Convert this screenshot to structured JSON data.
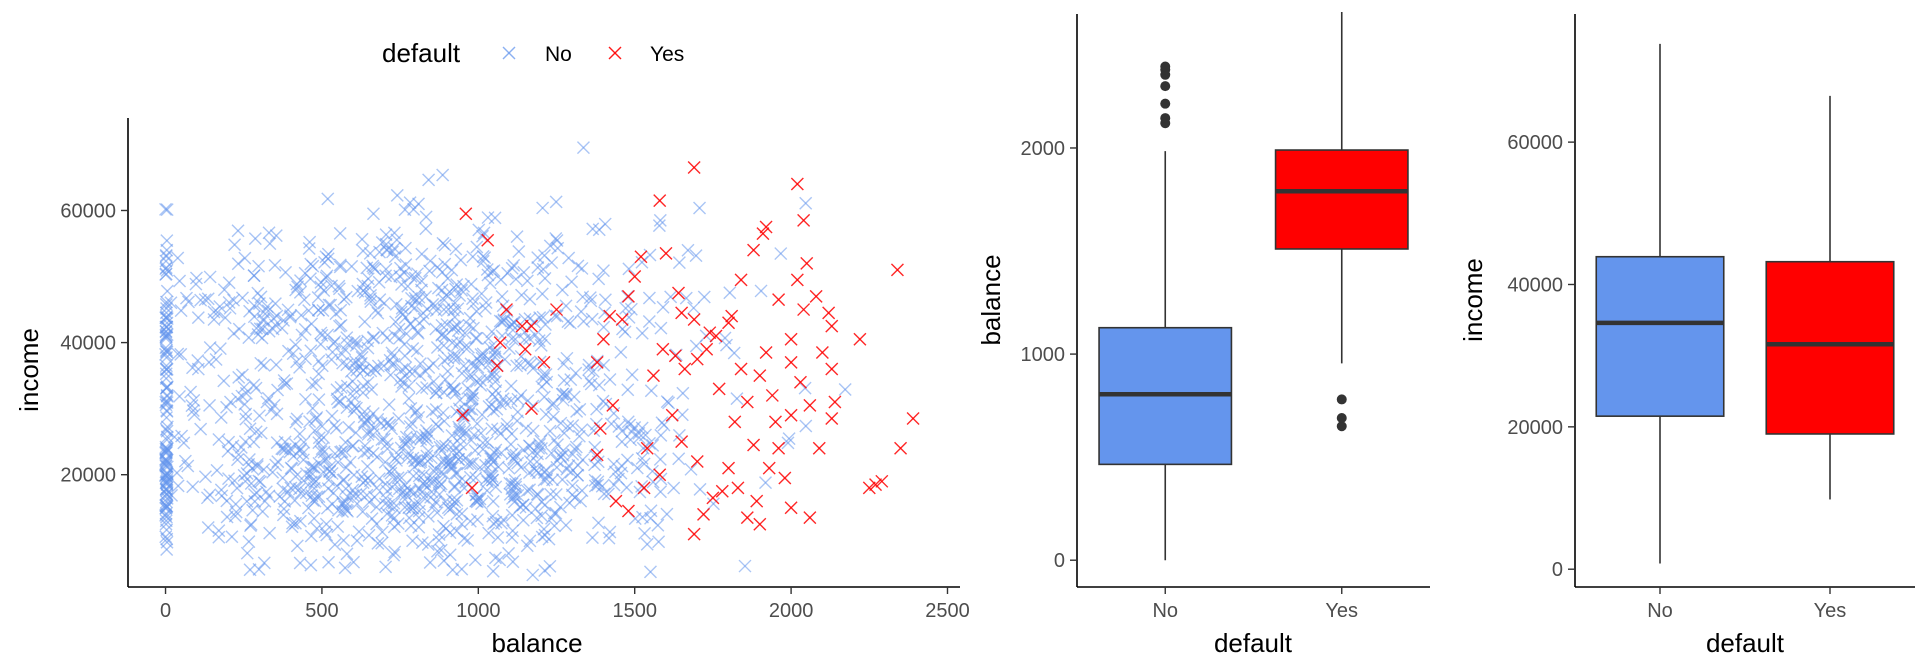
{
  "chart_data": [
    {
      "type": "scatter",
      "xlabel": "balance",
      "ylabel": "income",
      "xlim": [
        -120,
        2540
      ],
      "ylim": [
        3000,
        74000
      ],
      "x_ticks": [
        0,
        500,
        1000,
        1500,
        2000,
        2500
      ],
      "x_tick_labels": [
        "0",
        "500",
        "1000",
        "1500",
        "2000",
        "2500"
      ],
      "y_ticks": [
        20000,
        40000,
        60000
      ],
      "y_tick_labels": [
        "20000",
        "40000",
        "60000"
      ],
      "grid": false,
      "marker": "x",
      "legend": {
        "title": "default",
        "placement": "top",
        "entries": [
          {
            "label": "No",
            "color": "#6495ED"
          },
          {
            "label": "Yes",
            "color": "#FF0000"
          }
        ]
      },
      "series": [
        {
          "name": "No",
          "color": "#6495ED",
          "n_points": 1450
        },
        {
          "name": "Yes",
          "color": "#FF0000",
          "points": [
            [
              1690,
              66500
            ],
            [
              2020,
              64000
            ],
            [
              2040,
              58500
            ],
            [
              2120,
              44500
            ],
            [
              2130,
              42500
            ],
            [
              2220,
              40500
            ],
            [
              2340,
              51000
            ],
            [
              2390,
              28500
            ],
            [
              2350,
              24000
            ],
            [
              2290,
              19000
            ],
            [
              2250,
              18000
            ],
            [
              2270,
              18500
            ],
            [
              2130,
              28500
            ],
            [
              2060,
              30500
            ],
            [
              2030,
              34000
            ],
            [
              2000,
              37000
            ],
            [
              2000,
              40500
            ],
            [
              2040,
              45000
            ],
            [
              2050,
              52000
            ],
            [
              1920,
              57500
            ],
            [
              1910,
              56500
            ],
            [
              1880,
              54000
            ],
            [
              1840,
              49500
            ],
            [
              1810,
              44000
            ],
            [
              1800,
              43000
            ],
            [
              1760,
              41000
            ],
            [
              1730,
              39000
            ],
            [
              1700,
              37500
            ],
            [
              1690,
              43500
            ],
            [
              1650,
              44500
            ],
            [
              1640,
              47500
            ],
            [
              1600,
              53500
            ],
            [
              1580,
              61500
            ],
            [
              1520,
              53000
            ],
            [
              1500,
              50000
            ],
            [
              1480,
              47000
            ],
            [
              1460,
              43500
            ],
            [
              1420,
              44000
            ],
            [
              1400,
              40500
            ],
            [
              1380,
              37000
            ],
            [
              1430,
              30500
            ],
            [
              1390,
              27000
            ],
            [
              1380,
              23000
            ],
            [
              1560,
              35000
            ],
            [
              1590,
              39000
            ],
            [
              1630,
              38000
            ],
            [
              1620,
              29000
            ],
            [
              1650,
              25000
            ],
            [
              1580,
              20000
            ],
            [
              1540,
              24000
            ],
            [
              1700,
              22000
            ],
            [
              1720,
              14000
            ],
            [
              1690,
              11000
            ],
            [
              1750,
              16500
            ],
            [
              1780,
              17500
            ],
            [
              1800,
              21000
            ],
            [
              1860,
              13500
            ],
            [
              1900,
              12500
            ],
            [
              1930,
              21000
            ],
            [
              1960,
              24000
            ],
            [
              1940,
              32000
            ],
            [
              1900,
              35000
            ],
            [
              1860,
              31000
            ],
            [
              1820,
              28000
            ],
            [
              1840,
              36000
            ],
            [
              1920,
              38500
            ],
            [
              1960,
              46500
            ],
            [
              2020,
              49500
            ],
            [
              2080,
              47000
            ],
            [
              2100,
              38500
            ],
            [
              2130,
              36000
            ],
            [
              2140,
              31000
            ],
            [
              2090,
              24000
            ],
            [
              2060,
              13500
            ],
            [
              2000,
              15000
            ],
            [
              1980,
              19500
            ],
            [
              2000,
              29000
            ],
            [
              1170,
              30000
            ],
            [
              1210,
              37000
            ],
            [
              1250,
              45000
            ],
            [
              1170,
              42500
            ],
            [
              1150,
              39000
            ],
            [
              1140,
              42500
            ],
            [
              1090,
              45000
            ],
            [
              1070,
              40000
            ],
            [
              1030,
              55500
            ],
            [
              960,
              59500
            ],
            [
              980,
              18000
            ],
            [
              950,
              29000
            ],
            [
              1060,
              36500
            ],
            [
              1440,
              16000
            ],
            [
              1480,
              14500
            ],
            [
              1530,
              18000
            ],
            [
              1660,
              36000
            ],
            [
              1740,
              41500
            ],
            [
              1770,
              33000
            ],
            [
              1880,
              24500
            ],
            [
              1830,
              18000
            ],
            [
              1890,
              16000
            ],
            [
              1950,
              28000
            ]
          ]
        }
      ]
    },
    {
      "type": "box",
      "xlabel": "default",
      "ylabel": "balance",
      "categories": [
        "No",
        "Yes"
      ],
      "colors": [
        "#6495ED",
        "#FF0000"
      ],
      "ylim": [
        -130,
        2650
      ],
      "y_ticks": [
        0,
        1000,
        2000
      ],
      "y_tick_labels": [
        "0",
        "1000",
        "2000"
      ],
      "grid": false,
      "boxes": [
        {
          "category": "No",
          "min": 0,
          "q1": 465,
          "median": 805,
          "q3": 1128,
          "max": 1985,
          "outliers": [
            2120,
            2145,
            2215,
            2300,
            2355,
            2380,
            2395
          ]
        },
        {
          "category": "Yes",
          "min": 955,
          "q1": 1510,
          "median": 1790,
          "q3": 1990,
          "max": 2660,
          "outliers": [
            650,
            690,
            780
          ]
        }
      ]
    },
    {
      "type": "box",
      "xlabel": "default",
      "ylabel": "income",
      "categories": [
        "No",
        "Yes"
      ],
      "colors": [
        "#6495ED",
        "#FF0000"
      ],
      "ylim": [
        -2500,
        78000
      ],
      "y_ticks": [
        0,
        20000,
        40000,
        60000
      ],
      "y_tick_labels": [
        "0",
        "20000",
        "40000",
        "60000"
      ],
      "grid": false,
      "boxes": [
        {
          "category": "No",
          "min": 800,
          "q1": 21500,
          "median": 34600,
          "q3": 43900,
          "max": 73800,
          "outliers": []
        },
        {
          "category": "Yes",
          "min": 9800,
          "q1": 19000,
          "median": 31600,
          "q3": 43200,
          "max": 66500,
          "outliers": []
        }
      ]
    }
  ]
}
